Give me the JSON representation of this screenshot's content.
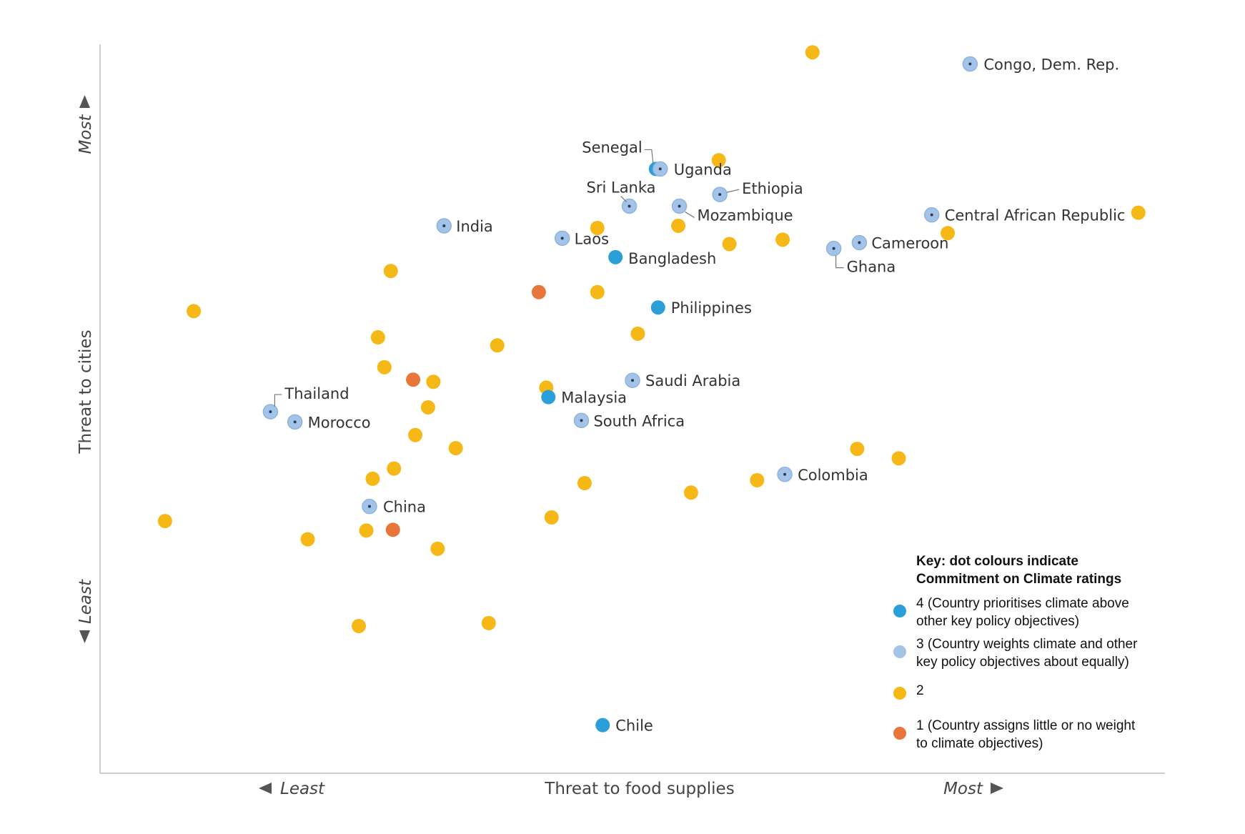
{
  "chart_data": {
    "type": "scatter",
    "xlabel": "Threat to food supplies",
    "ylabel": "Threat to cities",
    "x_low_label": "Least",
    "x_high_label": "Most",
    "y_low_label": "Least",
    "y_high_label": "Most",
    "xlim": [
      0,
      100
    ],
    "ylim": [
      0,
      100
    ],
    "grid": false,
    "legend_placement": "bottom-right",
    "legend": {
      "title_line1": "Key: dot colours indicate",
      "title_line2": "Commitment on Climate ratings",
      "entries": [
        {
          "rating": 4,
          "color": "#2a9fd8",
          "line1": "4 (Country prioritises climate above",
          "line2": "other key policy objectives)"
        },
        {
          "rating": 3,
          "color": "#a3c4e8",
          "line1": "3 (Country weights climate and other",
          "line2": "key policy objectives about equally)"
        },
        {
          "rating": 2,
          "color": "#f6b817",
          "line1": "2",
          "line2": ""
        },
        {
          "rating": 1,
          "color": "#e8763a",
          "line1": "1 (Country assigns little or no weight",
          "line2": "to climate objectives)"
        }
      ]
    },
    "points": [
      {
        "label": "Congo, Dem. Rep.",
        "rating": 3,
        "x": 81.7,
        "y": 97.3
      },
      {
        "label": "Senegal",
        "rating": 4,
        "x": 52.2,
        "y": 82.9
      },
      {
        "label": "Uganda",
        "rating": 3,
        "x": 52.6,
        "y": 82.9
      },
      {
        "label": "Ethiopia",
        "rating": 3,
        "x": 58.2,
        "y": 79.4
      },
      {
        "label": "Sri Lanka",
        "rating": 3,
        "x": 49.7,
        "y": 77.8
      },
      {
        "label": "Mozambique",
        "rating": 3,
        "x": 54.4,
        "y": 77.8
      },
      {
        "label": "Central African Republic",
        "rating": 3,
        "x": 78.1,
        "y": 76.6
      },
      {
        "label": "India",
        "rating": 3,
        "x": 32.3,
        "y": 75.1
      },
      {
        "label": "Laos",
        "rating": 3,
        "x": 43.4,
        "y": 73.4
      },
      {
        "label": "Cameroon",
        "rating": 3,
        "x": 71.3,
        "y": 72.8
      },
      {
        "label": "Ghana",
        "rating": 3,
        "x": 68.9,
        "y": 72.0
      },
      {
        "label": "Bangladesh",
        "rating": 4,
        "x": 48.4,
        "y": 70.8
      },
      {
        "label": "Philippines",
        "rating": 4,
        "x": 52.4,
        "y": 63.9
      },
      {
        "label": "Saudi Arabia",
        "rating": 3,
        "x": 50.0,
        "y": 53.9
      },
      {
        "label": "Malaysia",
        "rating": 4,
        "x": 42.1,
        "y": 51.6
      },
      {
        "label": "Thailand",
        "rating": 3,
        "x": 16.0,
        "y": 49.6
      },
      {
        "label": "Morocco",
        "rating": 3,
        "x": 18.3,
        "y": 48.2
      },
      {
        "label": "South Africa",
        "rating": 3,
        "x": 45.2,
        "y": 48.4
      },
      {
        "label": "Colombia",
        "rating": 3,
        "x": 64.3,
        "y": 41.0
      },
      {
        "label": "China",
        "rating": 3,
        "x": 25.3,
        "y": 36.6
      },
      {
        "label": "Chile",
        "rating": 4,
        "x": 47.2,
        "y": 6.6
      },
      {
        "label": "",
        "rating": 2,
        "x": 66.9,
        "y": 98.9
      },
      {
        "label": "",
        "rating": 2,
        "x": 58.1,
        "y": 84.1
      },
      {
        "label": "",
        "rating": 2,
        "x": 97.5,
        "y": 76.9
      },
      {
        "label": "",
        "rating": 2,
        "x": 46.7,
        "y": 74.8
      },
      {
        "label": "",
        "rating": 2,
        "x": 54.3,
        "y": 75.1
      },
      {
        "label": "",
        "rating": 2,
        "x": 79.6,
        "y": 74.1
      },
      {
        "label": "",
        "rating": 2,
        "x": 59.1,
        "y": 72.6
      },
      {
        "label": "",
        "rating": 2,
        "x": 64.1,
        "y": 73.2
      },
      {
        "label": "",
        "rating": 2,
        "x": 27.3,
        "y": 68.9
      },
      {
        "label": "",
        "rating": 2,
        "x": 46.7,
        "y": 66.0
      },
      {
        "label": "",
        "rating": 2,
        "x": 8.8,
        "y": 63.4
      },
      {
        "label": "",
        "rating": 2,
        "x": 50.5,
        "y": 60.3
      },
      {
        "label": "",
        "rating": 2,
        "x": 26.1,
        "y": 59.8
      },
      {
        "label": "",
        "rating": 2,
        "x": 37.3,
        "y": 58.7
      },
      {
        "label": "",
        "rating": 2,
        "x": 26.7,
        "y": 55.7
      },
      {
        "label": "",
        "rating": 2,
        "x": 31.3,
        "y": 53.7
      },
      {
        "label": "",
        "rating": 2,
        "x": 41.9,
        "y": 52.9
      },
      {
        "label": "",
        "rating": 2,
        "x": 30.8,
        "y": 50.2
      },
      {
        "label": "",
        "rating": 2,
        "x": 29.6,
        "y": 46.4
      },
      {
        "label": "",
        "rating": 2,
        "x": 33.4,
        "y": 44.6
      },
      {
        "label": "",
        "rating": 2,
        "x": 71.1,
        "y": 44.5
      },
      {
        "label": "",
        "rating": 2,
        "x": 75.0,
        "y": 43.2
      },
      {
        "label": "",
        "rating": 2,
        "x": 27.6,
        "y": 41.8
      },
      {
        "label": "",
        "rating": 2,
        "x": 25.6,
        "y": 40.4
      },
      {
        "label": "",
        "rating": 2,
        "x": 45.5,
        "y": 39.8
      },
      {
        "label": "",
        "rating": 2,
        "x": 61.7,
        "y": 40.2
      },
      {
        "label": "",
        "rating": 2,
        "x": 55.5,
        "y": 38.5
      },
      {
        "label": "",
        "rating": 2,
        "x": 6.1,
        "y": 34.6
      },
      {
        "label": "",
        "rating": 2,
        "x": 25.0,
        "y": 33.3
      },
      {
        "label": "",
        "rating": 2,
        "x": 42.4,
        "y": 35.1
      },
      {
        "label": "",
        "rating": 2,
        "x": 19.5,
        "y": 32.1
      },
      {
        "label": "",
        "rating": 2,
        "x": 31.7,
        "y": 30.8
      },
      {
        "label": "",
        "rating": 2,
        "x": 24.3,
        "y": 20.2
      },
      {
        "label": "",
        "rating": 2,
        "x": 36.5,
        "y": 20.6
      },
      {
        "label": "",
        "rating": 1,
        "x": 41.2,
        "y": 66.0
      },
      {
        "label": "",
        "rating": 1,
        "x": 29.4,
        "y": 54.0
      },
      {
        "label": "",
        "rating": 1,
        "x": 27.5,
        "y": 33.4
      }
    ]
  }
}
